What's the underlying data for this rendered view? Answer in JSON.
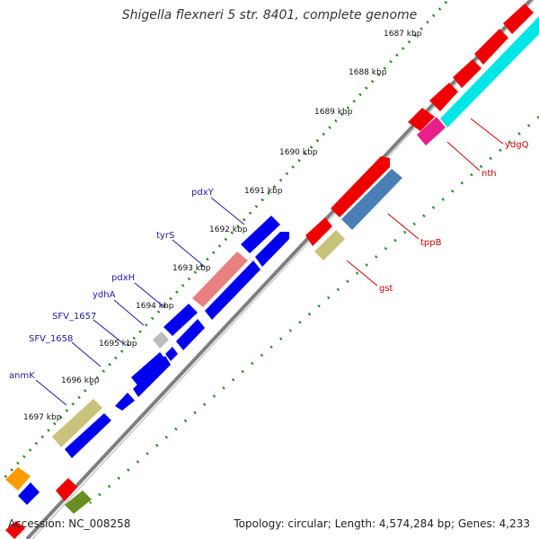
{
  "title": "Shigella flexneri 5 str. 8401, complete genome",
  "accession": "Accession: NC_008258",
  "summary": "Topology: circular; Length: 4,574,284 bp; Genes: 4,233",
  "ticks": [
    "1687 kbp",
    "1688 kbp",
    "1689 kbp",
    "1690 kbp",
    "1691 kbp",
    "1692 kbp",
    "1693 kbp",
    "1694 kbp",
    "1695 kbp",
    "1696 kbp",
    "1697 kbp"
  ],
  "genes_forward": [
    "pdxY",
    "tyrS",
    "pdxH",
    "ydhA",
    "SFV_1657",
    "SFV_1658",
    "anmK"
  ],
  "genes_reverse": [
    "ydgQ",
    "nth",
    "tppB",
    "gst"
  ],
  "colors": {
    "forward_gene": "#0000ee",
    "reverse_gene": "#ee0000",
    "forward_label": "#1a1aa6",
    "reverse_label": "#cc0000",
    "backbone": "#888888",
    "tick_dots": "#228b22",
    "cyan": "#00e5e5",
    "magenta": "#e8208a",
    "olive": "#c8c27a",
    "steel": "#4a7fb5",
    "pink": "#e88080",
    "dark_olive": "#6b8e23",
    "orange": "#ff9900",
    "gray": "#bdbdbd"
  }
}
